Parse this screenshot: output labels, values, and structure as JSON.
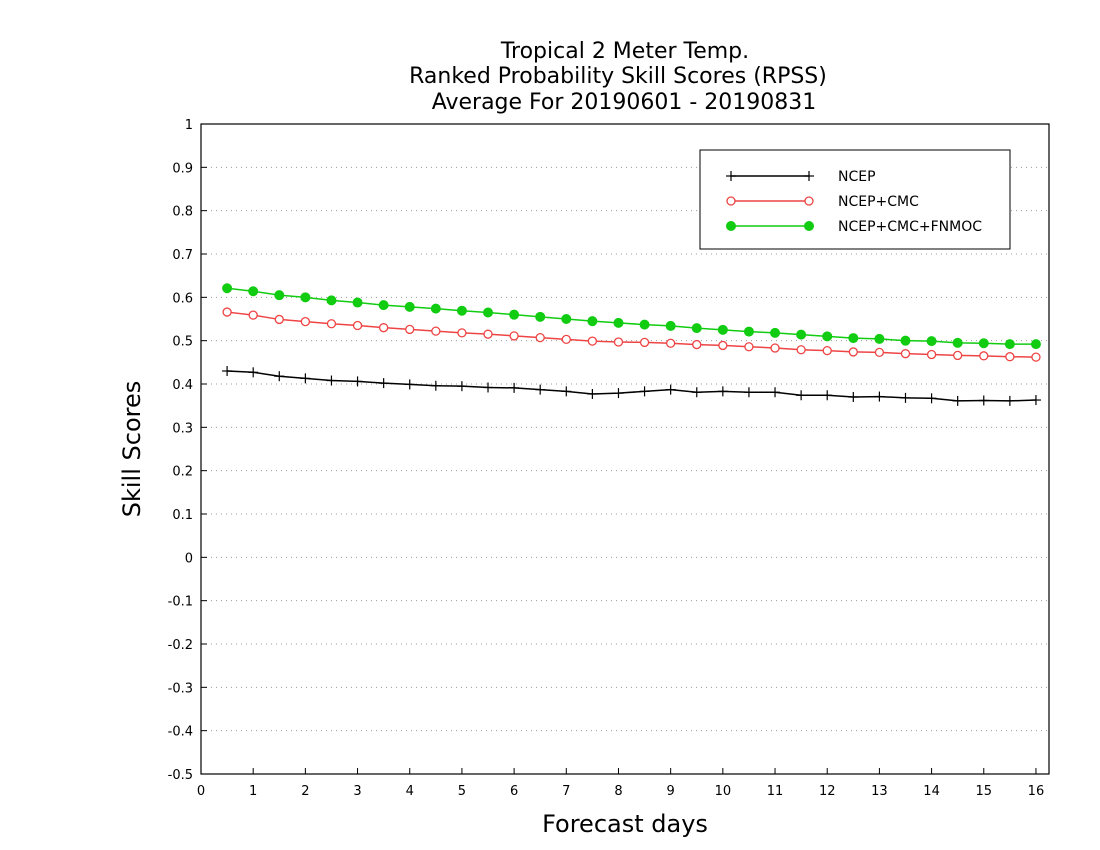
{
  "chart_data": {
    "type": "line",
    "title": [
      "Tropical 2 Meter Temp.",
      "Ranked Probability Skill Scores (RPSS)",
      "Average For 20190601 - 20190831"
    ],
    "xlabel": "Forecast days",
    "ylabel": "Skill Scores",
    "xlim": [
      0,
      16.25
    ],
    "ylim": [
      -0.5,
      1
    ],
    "x_ticks": [
      "0",
      "1",
      "2",
      "3",
      "4",
      "5",
      "6",
      "7",
      "8",
      "9",
      "10",
      "11",
      "12",
      "13",
      "14",
      "15",
      "16"
    ],
    "y_ticks": [
      "1",
      "0.9",
      "0.8",
      "0.7",
      "0.6",
      "0.5",
      "0.4",
      "0.3",
      "0.2",
      "0.1",
      "0",
      "-0.1",
      "-0.2",
      "-0.3",
      "-0.4",
      "-0.5"
    ],
    "grid": "horizontal dotted",
    "legend_position": "top-right",
    "x": [
      0.5,
      1,
      1.5,
      2,
      2.5,
      3,
      3.5,
      4,
      4.5,
      5,
      5.5,
      6,
      6.5,
      7,
      7.5,
      8,
      8.5,
      9,
      9.5,
      10,
      10.5,
      11,
      11.5,
      12,
      12.5,
      13,
      13.5,
      14,
      14.5,
      15,
      15.5,
      16
    ],
    "series": [
      {
        "name": "NCEP",
        "color": "#000000",
        "marker": "plus",
        "values": [
          0.43,
          0.427,
          0.418,
          0.413,
          0.408,
          0.406,
          0.402,
          0.399,
          0.396,
          0.395,
          0.392,
          0.391,
          0.387,
          0.383,
          0.377,
          0.379,
          0.383,
          0.387,
          0.381,
          0.383,
          0.381,
          0.381,
          0.374,
          0.374,
          0.37,
          0.371,
          0.368,
          0.367,
          0.361,
          0.362,
          0.361,
          0.363
        ]
      },
      {
        "name": "NCEP+CMC",
        "color": "#ee4444",
        "marker": "open-circle",
        "values": [
          0.566,
          0.559,
          0.549,
          0.544,
          0.539,
          0.535,
          0.53,
          0.526,
          0.522,
          0.518,
          0.515,
          0.511,
          0.507,
          0.503,
          0.499,
          0.497,
          0.496,
          0.494,
          0.491,
          0.489,
          0.486,
          0.483,
          0.479,
          0.477,
          0.474,
          0.473,
          0.47,
          0.468,
          0.466,
          0.465,
          0.463,
          0.462
        ]
      },
      {
        "name": "NCEP+CMC+FNMOC",
        "color": "#11cc11",
        "marker": "filled-circle",
        "values": [
          0.621,
          0.614,
          0.605,
          0.6,
          0.593,
          0.588,
          0.582,
          0.578,
          0.574,
          0.569,
          0.565,
          0.56,
          0.555,
          0.55,
          0.545,
          0.541,
          0.537,
          0.534,
          0.529,
          0.525,
          0.521,
          0.518,
          0.514,
          0.51,
          0.506,
          0.504,
          0.5,
          0.499,
          0.495,
          0.494,
          0.492,
          0.492
        ]
      }
    ]
  }
}
